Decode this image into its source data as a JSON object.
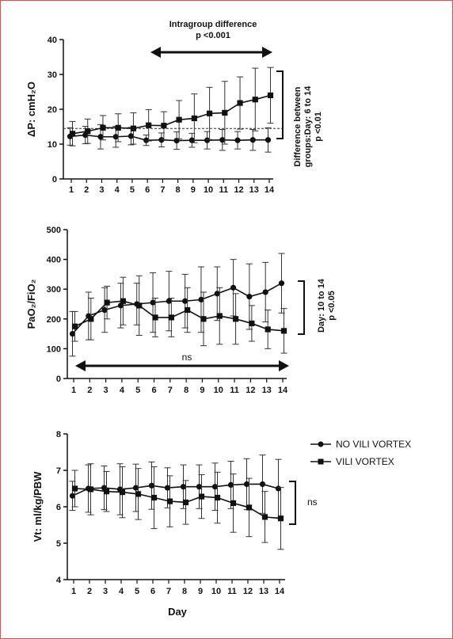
{
  "chart_data": [
    {
      "type": "line",
      "ylabel": "ΔP: cmH₂O",
      "ylim": [
        0,
        40
      ],
      "yticks": [
        0,
        10,
        20,
        30,
        40
      ],
      "x": [
        1,
        2,
        3,
        4,
        5,
        6,
        7,
        8,
        9,
        10,
        11,
        12,
        13,
        14
      ],
      "series": [
        {
          "name": "NO VILI VORTEX",
          "marker": "circle",
          "values": [
            12.2,
            12.6,
            12.1,
            12.1,
            12.3,
            11.1,
            11.2,
            11.0,
            11.1,
            11.1,
            11.2,
            11.1,
            11.2,
            11.2
          ],
          "errors": [
            2.5,
            2.5,
            3.5,
            3.0,
            2.5,
            1.5,
            2.0,
            2.5,
            2.0,
            2.5,
            3.0,
            2.5,
            3.0,
            3.5
          ]
        },
        {
          "name": "VILI VORTEX",
          "marker": "square",
          "values": [
            13.0,
            13.7,
            14.7,
            14.7,
            14.5,
            15.4,
            15.3,
            17.0,
            17.4,
            18.8,
            19.0,
            21.8,
            22.8,
            24.0
          ],
          "errors": [
            3.5,
            3.5,
            3.5,
            4.0,
            4.5,
            4.5,
            4.0,
            5.5,
            7.0,
            7.5,
            9.0,
            7.5,
            9.0,
            8.0
          ]
        }
      ],
      "reference_line_y": 14.5,
      "annotations": {
        "top_label_1": "Intragroup difference",
        "top_label_2": "p <0.001",
        "side_label_1": "Difference between",
        "side_label_2": "groups:Day: 6 to 14",
        "side_label_3": "p <0.01"
      }
    },
    {
      "type": "line",
      "ylabel": "PaO₂/FiO₂",
      "ylim": [
        0,
        500
      ],
      "yticks": [
        0,
        100,
        200,
        300,
        400,
        500
      ],
      "x": [
        1,
        2,
        3,
        4,
        5,
        6,
        7,
        8,
        9,
        10,
        11,
        12,
        13,
        14
      ],
      "series": [
        {
          "name": "NO VILI VORTEX",
          "marker": "circle",
          "values": [
            150,
            210,
            230,
            245,
            250,
            255,
            260,
            260,
            265,
            285,
            305,
            275,
            290,
            320
          ],
          "errors": [
            75,
            80,
            75,
            75,
            70,
            100,
            100,
            90,
            110,
            90,
            95,
            110,
            100,
            100
          ]
        },
        {
          "name": "VILI VORTEX",
          "marker": "square",
          "values": [
            175,
            200,
            255,
            260,
            245,
            205,
            205,
            230,
            200,
            210,
            200,
            185,
            165,
            160
          ],
          "errors": [
            50,
            70,
            55,
            80,
            100,
            65,
            65,
            75,
            90,
            95,
            85,
            60,
            65,
            75
          ]
        }
      ],
      "annotations": {
        "bottom_label": "ns",
        "side_label_1": "Day: 10 to 14",
        "side_label_2": "p <0.05"
      }
    },
    {
      "type": "line",
      "ylabel": "Vt: ml/kg/PBW",
      "xlabel": "Day",
      "ylim": [
        4,
        8
      ],
      "yticks": [
        4,
        5,
        6,
        7,
        8
      ],
      "x": [
        1,
        2,
        3,
        4,
        5,
        6,
        7,
        8,
        9,
        10,
        11,
        12,
        13,
        14
      ],
      "series": [
        {
          "name": "NO VILI VORTEX",
          "marker": "circle",
          "values": [
            6.3,
            6.5,
            6.52,
            6.48,
            6.52,
            6.58,
            6.52,
            6.55,
            6.55,
            6.55,
            6.6,
            6.62,
            6.62,
            6.5
          ],
          "errors": [
            0.4,
            0.65,
            0.6,
            0.7,
            0.65,
            0.65,
            0.55,
            0.6,
            0.6,
            0.65,
            0.65,
            0.7,
            0.8,
            0.8
          ]
        },
        {
          "name": "VILI VORTEX",
          "marker": "square",
          "values": [
            6.5,
            6.48,
            6.42,
            6.4,
            6.35,
            6.25,
            6.15,
            6.12,
            6.28,
            6.25,
            6.1,
            5.98,
            5.72,
            5.68
          ],
          "errors": [
            0.5,
            0.7,
            0.55,
            0.7,
            0.7,
            0.85,
            0.7,
            0.6,
            0.6,
            0.7,
            0.8,
            0.8,
            0.7,
            0.85
          ]
        }
      ],
      "annotations": {
        "side_label": "ns"
      },
      "legend_position": "right"
    }
  ]
}
